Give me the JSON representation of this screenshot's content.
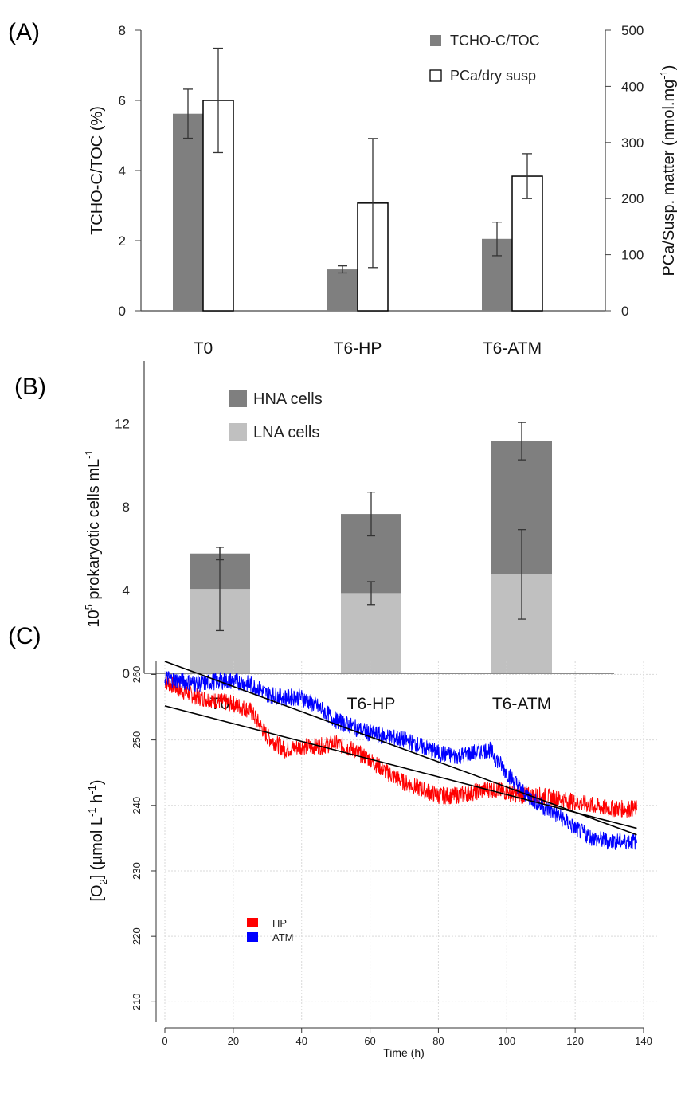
{
  "colors": {
    "tcho_bar": "#7f7f7f",
    "pca_bar": "#ffffff",
    "hna": "#7f7f7f",
    "lna": "#c0c0c0",
    "hp": "#ff0000",
    "atm": "#0000ff",
    "fit": "#000000",
    "grid": "#d9d9d9"
  },
  "chart_data": [
    {
      "panel": "A",
      "panel_label": "(A)",
      "type": "bar",
      "categories": [
        "T0",
        "T6-HP",
        "T6-ATM"
      ],
      "ylabel": "TCHO-C/TOC (%)",
      "ylabel_right": "PCa/Susp. matter (nmol.mg",
      "ylabel_right_sup": "-1",
      "ylabel_right_close": ")",
      "ylim": [
        0,
        8
      ],
      "ylim_right": [
        0,
        500
      ],
      "yticks": [
        "0",
        "2",
        "4",
        "6",
        "8"
      ],
      "yticks_right": [
        "0",
        "100",
        "200",
        "300",
        "400",
        "500"
      ],
      "legend_position": "top-right",
      "series": [
        {
          "name": "TCHO-C/TOC",
          "axis": "left",
          "values": [
            5.62,
            1.18,
            2.05
          ],
          "errors": [
            0.7,
            0.1,
            0.48
          ]
        },
        {
          "name": "PCa/dry susp",
          "axis": "right",
          "values": [
            375,
            192,
            240
          ],
          "errors": [
            93,
            115,
            40
          ]
        }
      ]
    },
    {
      "panel": "B",
      "panel_label": "(B)",
      "type": "bar",
      "stacked": true,
      "categories": [
        "T0",
        "T6-HP",
        "T6-ATM"
      ],
      "ylabel_sup": "5",
      "ylabel_pre": "10",
      "ylabel_mid": " prokaryotic cells mL",
      "ylabel_sup2": "-1",
      "ylim": [
        0,
        15
      ],
      "yticks": [
        "0",
        "4",
        "8",
        "12"
      ],
      "legend_position": "top-left",
      "series": [
        {
          "name": "HNA cells",
          "values": [
            1.7,
            3.8,
            6.4
          ],
          "totals": [
            5.75,
            7.65,
            11.15
          ],
          "errors": [
            0.3,
            1.05,
            0.9
          ]
        },
        {
          "name": "LNA cells",
          "values": [
            4.05,
            3.85,
            4.75
          ],
          "errors": [
            2.0,
            0.55,
            2.15
          ]
        }
      ]
    },
    {
      "panel": "C",
      "panel_label": "(C)",
      "type": "line",
      "xlabel": "Time (h)",
      "ylabel_pre": "[O",
      "ylabel_sub": "2",
      "ylabel_mid": "] (µmol L",
      "ylabel_sup1": "-1",
      "ylabel_h": " h",
      "ylabel_sup2": "-1",
      "ylabel_end": ")",
      "xlim": [
        0,
        140
      ],
      "ylim": [
        207,
        262
      ],
      "xticks": [
        "0",
        "20",
        "40",
        "60",
        "80",
        "100",
        "120",
        "140"
      ],
      "yticks": [
        "210",
        "220",
        "230",
        "240",
        "250",
        "260"
      ],
      "grid": true,
      "legend_position": "lower-left",
      "series": [
        {
          "name": "HP",
          "x": [
            0,
            5,
            10,
            15,
            20,
            25,
            30,
            35,
            40,
            45,
            50,
            55,
            60,
            65,
            70,
            75,
            80,
            85,
            90,
            95,
            100,
            105,
            110,
            115,
            120,
            125,
            130,
            135,
            138
          ],
          "y": [
            259,
            257.5,
            256.5,
            256,
            255.5,
            254.5,
            250.5,
            248.5,
            249,
            249,
            249.5,
            248.5,
            247,
            245,
            243.5,
            242.5,
            241.5,
            241.5,
            242,
            242.5,
            242,
            241.5,
            241.5,
            241,
            240.5,
            240,
            239.5,
            239.5,
            239.5
          ],
          "fit": {
            "x": [
              0,
              138
            ],
            "y": [
              255.2,
              236.5
            ]
          }
        },
        {
          "name": "ATM",
          "x": [
            0,
            5,
            10,
            15,
            20,
            25,
            30,
            35,
            40,
            45,
            50,
            55,
            60,
            65,
            70,
            75,
            80,
            85,
            90,
            95,
            100,
            105,
            110,
            115,
            120,
            125,
            130,
            135,
            138
          ],
          "y": [
            259.5,
            259,
            258.5,
            259,
            259,
            258.5,
            257,
            256.5,
            256.5,
            255,
            253,
            252,
            251,
            250.5,
            250,
            249,
            248,
            247.5,
            248,
            248.5,
            245,
            242,
            240,
            238.5,
            236.5,
            235,
            234.5,
            234.5,
            234.5
          ],
          "fit": {
            "x": [
              0,
              138
            ],
            "y": [
              262,
              235.5
            ]
          }
        }
      ]
    }
  ]
}
